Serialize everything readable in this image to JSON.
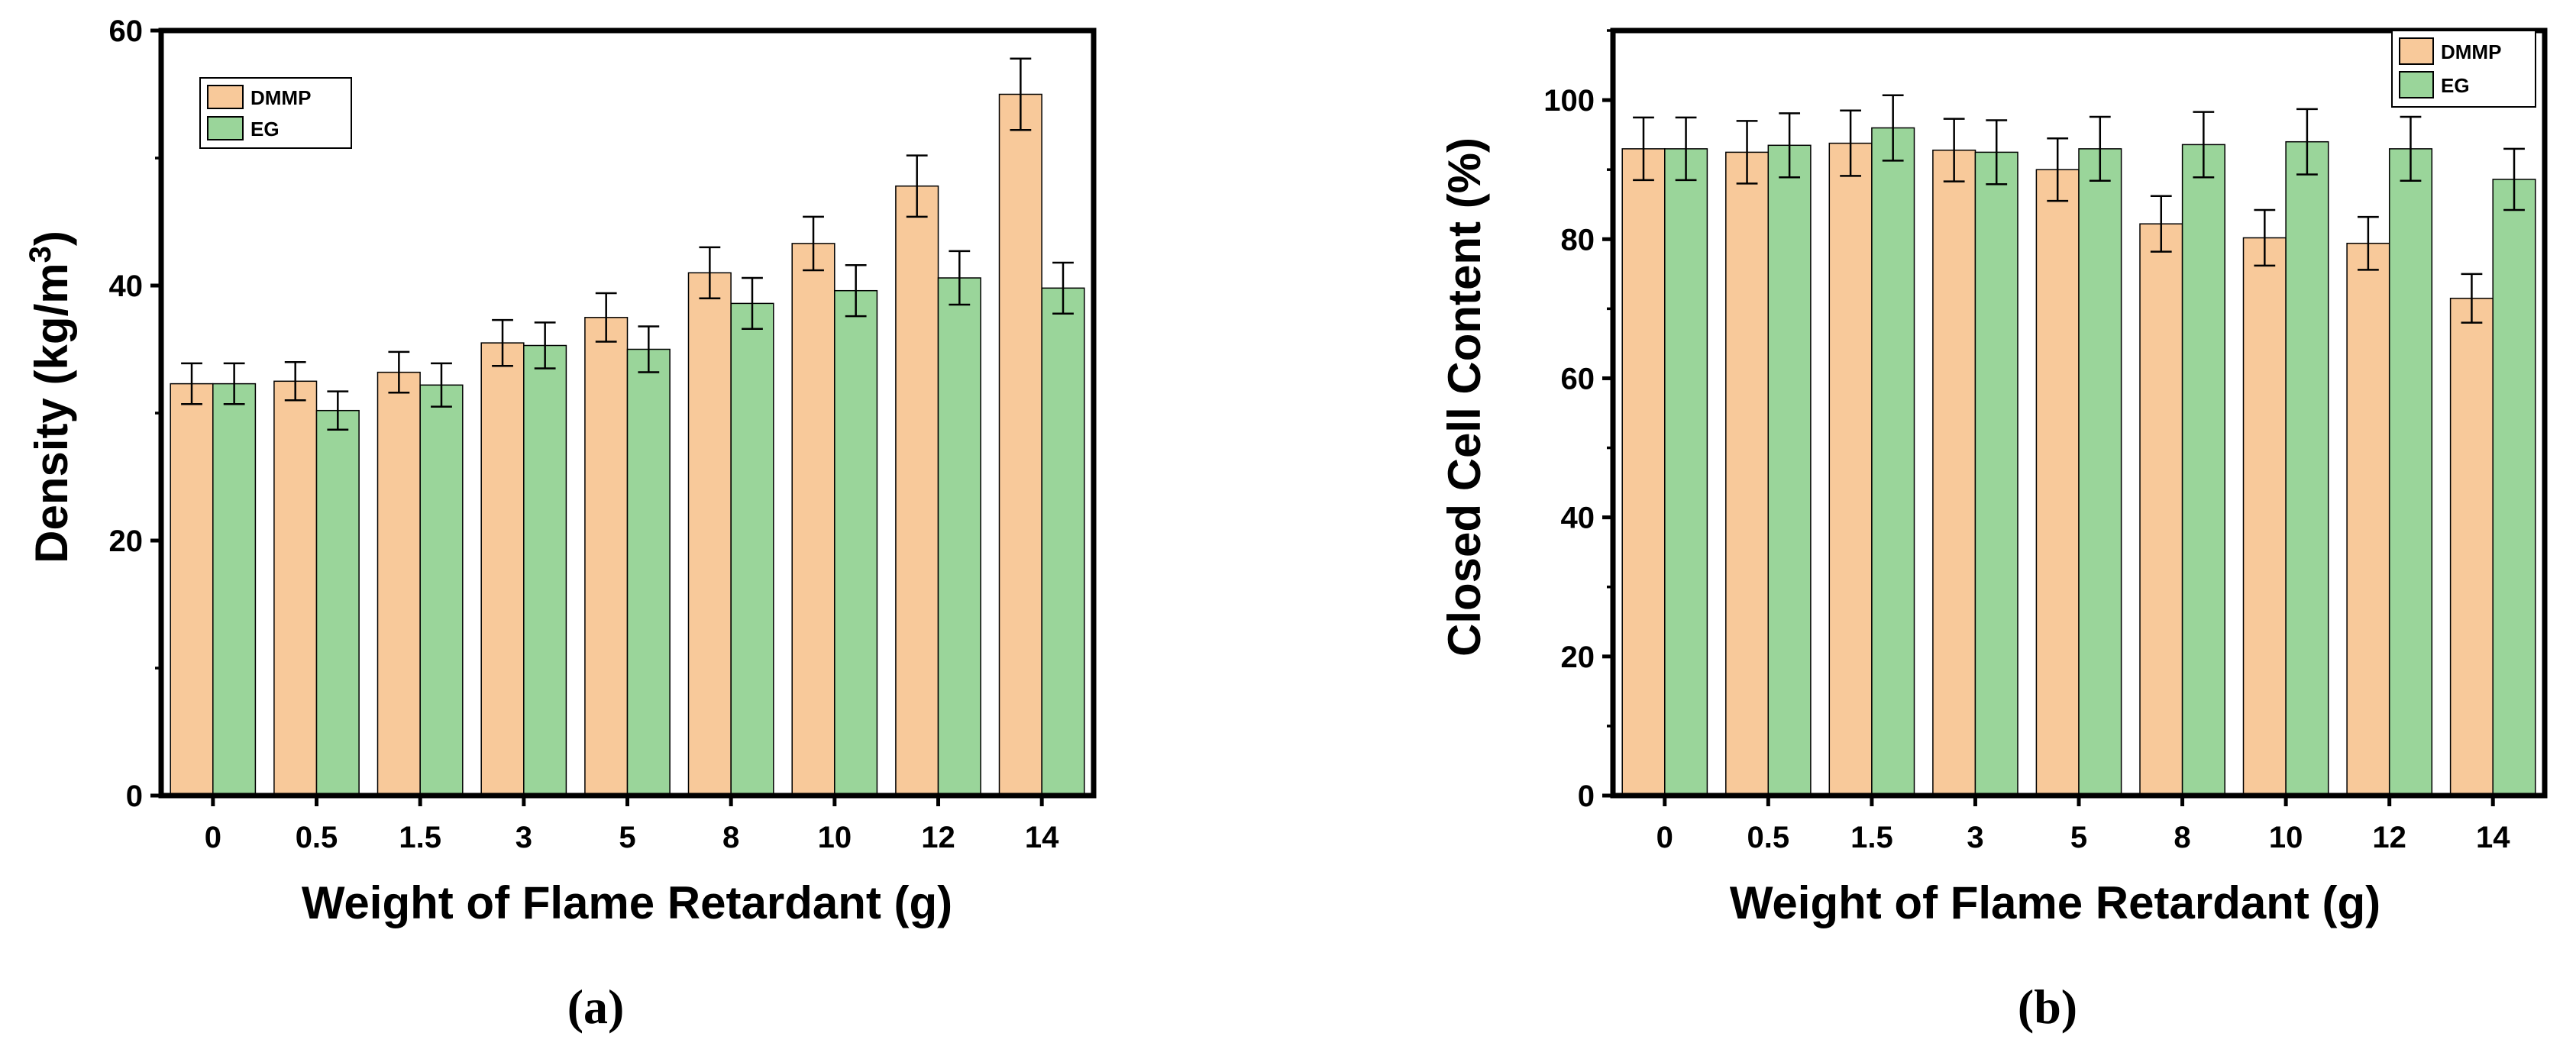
{
  "figure": {
    "panel_labels": [
      "(a)",
      "(b)"
    ]
  },
  "chart_data": [
    {
      "type": "bar",
      "panel": "(a)",
      "xlabel": "Weight of Flame Retardant (g)",
      "ylabel_main": "Density (kg/m",
      "ylabel_sup": "3",
      "ylabel_close": ")",
      "ylim": [
        0,
        60
      ],
      "yticks": [
        0,
        20,
        40,
        60
      ],
      "categories": [
        "0",
        "0.5",
        "1.5",
        "3",
        "5",
        "8",
        "10",
        "12",
        "14"
      ],
      "legend_position": "top-left",
      "grid": false,
      "series": [
        {
          "name": "DMMP",
          "color": "#F8C99A",
          "values": [
            32.3,
            32.5,
            33.2,
            35.5,
            37.5,
            41.0,
            43.3,
            47.8,
            55.0
          ],
          "errors": [
            1.6,
            1.5,
            1.6,
            1.8,
            1.9,
            2.0,
            2.1,
            2.4,
            2.8
          ]
        },
        {
          "name": "EG",
          "color": "#9AD59A",
          "values": [
            32.3,
            30.2,
            32.2,
            35.3,
            35.0,
            38.6,
            39.6,
            40.6,
            39.8
          ],
          "errors": [
            1.6,
            1.5,
            1.7,
            1.8,
            1.8,
            2.0,
            2.0,
            2.1,
            2.0
          ]
        }
      ]
    },
    {
      "type": "bar",
      "panel": "(b)",
      "xlabel": "Weight of Flame Retardant (g)",
      "ylabel_main": "Closed Cell Content (%)",
      "ylabel_sup": "",
      "ylabel_close": "",
      "ylim": [
        0,
        110
      ],
      "yticks": [
        0,
        20,
        40,
        60,
        80,
        100
      ],
      "categories": [
        "0",
        "0.5",
        "1.5",
        "3",
        "5",
        "8",
        "10",
        "12",
        "14"
      ],
      "legend_position": "top-right",
      "grid": false,
      "series": [
        {
          "name": "DMMP",
          "color": "#F8C99A",
          "values": [
            93.0,
            92.5,
            93.8,
            92.8,
            90.0,
            82.2,
            80.2,
            79.4,
            71.5
          ],
          "errors": [
            4.5,
            4.5,
            4.7,
            4.5,
            4.5,
            4.0,
            4.0,
            3.8,
            3.5
          ]
        },
        {
          "name": "EG",
          "color": "#9AD59A",
          "values": [
            93.0,
            93.5,
            96.0,
            92.5,
            93.0,
            93.6,
            94.0,
            93.0,
            88.6
          ],
          "errors": [
            4.5,
            4.6,
            4.7,
            4.6,
            4.6,
            4.7,
            4.7,
            4.6,
            4.4
          ]
        }
      ]
    }
  ]
}
